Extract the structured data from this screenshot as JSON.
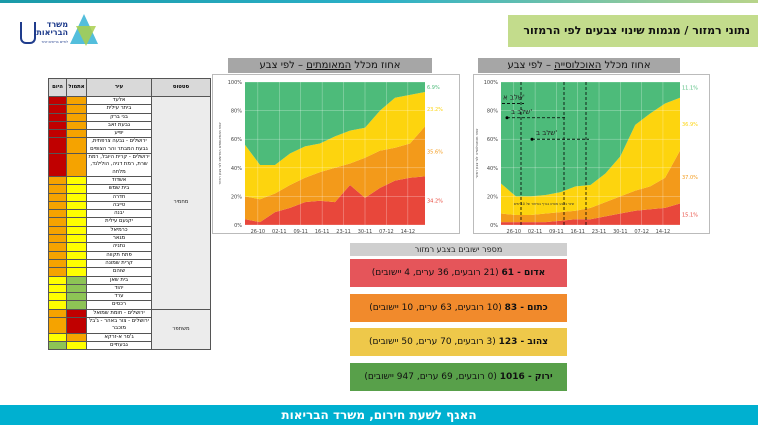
{
  "header": {
    "title": "נתוני רמזור / מגמות שינוי צבעים לפי הרמזור",
    "logo_text": "משרד הבריאות",
    "logo_subtext": "לחיים בריאים יותר"
  },
  "colors": {
    "red": "#c00000",
    "orange": "#f5a300",
    "yellow": "#ffff00",
    "green": "#8dc455"
  },
  "table": {
    "headers": {
      "status": "סטטוס",
      "city": "עיר",
      "yesterday": "אתמול",
      "today": "היום"
    },
    "groups": [
      {
        "status": "מחמיר",
        "rows": [
          {
            "city": "אלעד",
            "yesterday": "or",
            "today": "red"
          },
          {
            "city": "ביתר עילית",
            "yesterday": "or",
            "today": "red"
          },
          {
            "city": "בני ברק",
            "yesterday": "or",
            "today": "red"
          },
          {
            "city": "גבעת זאב",
            "yesterday": "or",
            "today": "red"
          },
          {
            "city": "יפיע",
            "yesterday": "or",
            "today": "red"
          },
          {
            "city": "ירושלים - גבעה צרפתית, גבעת המבתר והר הצופים",
            "yesterday": "or",
            "today": "red"
          },
          {
            "city": "ירושלים - קרית היובל, רמת שרת, רמת דניה, הולילנד, מלחה",
            "yesterday": "or",
            "today": "red"
          },
          {
            "city": "אשדוד",
            "yesterday": "ye",
            "today": "or"
          },
          {
            "city": "בית שמש",
            "yesterday": "ye",
            "today": "or"
          },
          {
            "city": "חדרה",
            "yesterday": "ye",
            "today": "or"
          },
          {
            "city": "טייבה",
            "yesterday": "ye",
            "today": "or"
          },
          {
            "city": "יבנה",
            "yesterday": "ye",
            "today": "or"
          },
          {
            "city": "יקנעם עילית",
            "yesterday": "ye",
            "today": "or"
          },
          {
            "city": "כרמיאל",
            "yesterday": "ye",
            "today": "or"
          },
          {
            "city": "מגאר",
            "yesterday": "ye",
            "today": "or"
          },
          {
            "city": "נתניה",
            "yesterday": "ye",
            "today": "or"
          },
          {
            "city": "פתח תקווה",
            "yesterday": "ye",
            "today": "or"
          },
          {
            "city": "קרית שמונה",
            "yesterday": "ye",
            "today": "or"
          },
          {
            "city": "שוהם",
            "yesterday": "ye",
            "today": "or"
          },
          {
            "city": "בית שאן",
            "yesterday": "gr",
            "today": "ye"
          },
          {
            "city": "יהוד",
            "yesterday": "gr",
            "today": "ye"
          },
          {
            "city": "ערד",
            "yesterday": "gr",
            "today": "ye"
          },
          {
            "city": "רכסים",
            "yesterday": "gr",
            "today": "ye"
          }
        ]
      },
      {
        "status": "משתפר",
        "rows": [
          {
            "city": "ירושלים - חומת שמואל",
            "yesterday": "red",
            "today": "or"
          },
          {
            "city": "ירושלים - צור באהר - ג'בל מוכבר",
            "yesterday": "red",
            "today": "or"
          },
          {
            "city": "ג'סר א-זרקא",
            "yesterday": "or",
            "today": "ye"
          },
          {
            "city": "גבעתיים",
            "yesterday": "ye",
            "today": "gr"
          }
        ]
      }
    ]
  },
  "panels": {
    "confirmed_title_pre": "אחוז מכלל ",
    "confirmed_title_u": "המאומתים",
    "confirmed_title_post": " – לפי צבע",
    "population_title_pre": "אחוז מכלל ",
    "population_title_u": "האוכלוסייה",
    "population_title_post": " – לפי צבע"
  },
  "chart_data": [
    {
      "type": "area",
      "title": "אחוז מכלל המאומתים – לפי צבע",
      "ylabel": "אחוז מהמאומתים החדשים לפי צבע רמזור",
      "ylim": [
        0,
        100
      ],
      "yticks": [
        "0%",
        "20%",
        "40%",
        "60%",
        "80%",
        "100%"
      ],
      "xticks": [
        "26-10",
        "02-11",
        "09-11",
        "16-11",
        "23-11",
        "30-11",
        "07-12",
        "14-12"
      ],
      "grid": true,
      "series": [
        {
          "name": "red",
          "color": "#e8473b",
          "end_label": "34.2%",
          "values": [
            4,
            2,
            9,
            12,
            16,
            17,
            16,
            28,
            19,
            26,
            31,
            33,
            34
          ]
        },
        {
          "name": "orange",
          "color": "#f39a1a",
          "end_label": "35.6%",
          "values": [
            16,
            16,
            13,
            16,
            17,
            20,
            24,
            15,
            28,
            26,
            23,
            24,
            35
          ]
        },
        {
          "name": "yellow",
          "color": "#fdd40e",
          "end_label": "23.2%",
          "values": [
            36,
            24,
            20,
            22,
            22,
            20,
            22,
            23,
            21,
            28,
            35,
            34,
            24
          ]
        },
        {
          "name": "green",
          "color": "#4dbb7a",
          "end_label": "6.9%",
          "values": [
            44,
            58,
            58,
            50,
            45,
            43,
            38,
            34,
            32,
            20,
            11,
            9,
            7
          ]
        }
      ]
    },
    {
      "type": "area",
      "title": "אחוז מכלל האוכלוסייה – לפי צבע",
      "ylabel": "אחוז מהאוכלוסייה לפי צבע רמזור",
      "ylim": [
        0,
        100
      ],
      "yticks": [
        "0%",
        "20%",
        "40%",
        "60%",
        "80%",
        "100%"
      ],
      "xticks": [
        "26-10",
        "02-11",
        "09-11",
        "16-11",
        "23-11",
        "30-11",
        "07-12",
        "14-12"
      ],
      "grid": true,
      "annotations": [
        "שלב א'",
        "שלב ב'",
        "שלב ב'",
        "שינוי בצבע מופיע בגרף באיחור של 10 ימים"
      ],
      "series": [
        {
          "name": "red",
          "color": "#e8473b",
          "end_label": "15.1%",
          "values": [
            2,
            2,
            2,
            2,
            3,
            4,
            4,
            6,
            8,
            10,
            11,
            12,
            15
          ]
        },
        {
          "name": "orange",
          "color": "#f39a1a",
          "end_label": "37.0%",
          "values": [
            6,
            5,
            5,
            6,
            6,
            6,
            8,
            10,
            12,
            14,
            16,
            21,
            37
          ]
        },
        {
          "name": "yellow",
          "color": "#fdd40e",
          "end_label": "36.9%",
          "values": [
            21,
            13,
            13,
            13,
            14,
            17,
            16,
            20,
            28,
            46,
            51,
            52,
            37
          ]
        },
        {
          "name": "green",
          "color": "#4dbb7a",
          "end_label": "11.1%",
          "values": [
            71,
            80,
            80,
            79,
            77,
            73,
            72,
            64,
            52,
            30,
            22,
            15,
            11
          ]
        }
      ]
    }
  ],
  "legend": {
    "title": "מספר ישובים בצבע רמזור",
    "items": [
      {
        "bold": "אדום - 61",
        "rest": " (21 רובעים, 36 ערים, 4 יישובים)",
        "color": "#e5555a"
      },
      {
        "bold": "כתום - 83",
        "rest": " (10 רובעים, 63 ערים, 10 יישובים)",
        "color": "#f18a2c"
      },
      {
        "bold": "צהוב - 123",
        "rest": " (3 רובעים, 70 ערים, 50 יישובים)",
        "color": "#eec84a"
      },
      {
        "bold": "ירוק - 1016",
        "rest": " (0 רובעים, 69 ערים, 947 יישובים)",
        "color": "#58a04a"
      }
    ]
  },
  "footer": {
    "text": "האגף לשעת חירום, משרד הבריאות"
  }
}
